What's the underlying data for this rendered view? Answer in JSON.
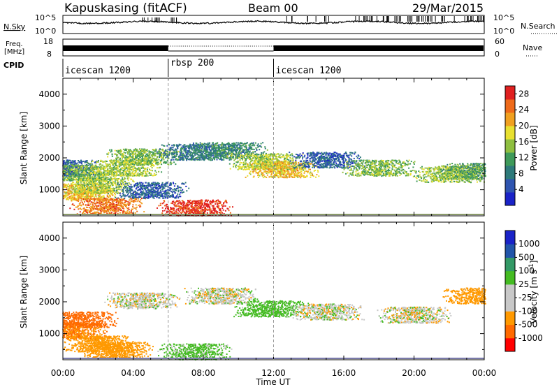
{
  "header": {
    "station": "Kapuskasing (fitACF)",
    "beam": "Beam 00",
    "date": "29/Mar/2015"
  },
  "noise_panel": {
    "left_label": "N.Sky",
    "right_label": "N.Search",
    "top_tick": "10^5",
    "bottom_tick": "10^0"
  },
  "freq_panel": {
    "left_label_1": "Freq.",
    "left_label_2": "[MHz]",
    "right_label": "Nave",
    "left_top_tick": "18",
    "left_bottom_tick": "8",
    "right_top_tick": "60",
    "right_bottom_tick": "0"
  },
  "cpid": {
    "label": "CPID",
    "segments": [
      {
        "name": "icescan 1200",
        "start_hour": 0,
        "end_hour": 6
      },
      {
        "name": "rbsp 200",
        "start_hour": 6,
        "end_hour": 12
      },
      {
        "name": "icescan 1200",
        "start_hour": 12,
        "end_hour": 24
      }
    ]
  },
  "colors": {
    "power": [
      "#1a23c8",
      "#2f55b0",
      "#2e7a7a",
      "#3f9a5a",
      "#8fbf40",
      "#e8e030",
      "#f0a020",
      "#ee6a1a",
      "#e02020"
    ],
    "velocity": [
      "#ff0000",
      "#ff6a00",
      "#ff9900",
      "#c8c8c8",
      "#c8c8c8",
      "#44bb22",
      "#339966",
      "#2255aa",
      "#1a23c8"
    ]
  },
  "chart_data": [
    {
      "type": "heatmap",
      "title": "",
      "xlabel": "",
      "ylabel": "Slant Range [km]",
      "x_ticks": [
        "00:00",
        "04:00",
        "08:00",
        "12:00",
        "16:00",
        "20:00",
        "00:00"
      ],
      "x_range_hours": [
        0,
        24
      ],
      "y_ticks": [
        1000,
        2000,
        3000,
        4000
      ],
      "ylim": [
        180,
        4500
      ],
      "colorbar": {
        "label": "Power [dB]",
        "ticks": [
          4,
          8,
          12,
          16,
          20,
          24,
          28
        ],
        "range": [
          0,
          30
        ]
      },
      "features": [
        {
          "hour": 0.0,
          "range_km": 1700,
          "power_db": 6
        },
        {
          "hour": 1.0,
          "range_km": 1550,
          "power_db": 14
        },
        {
          "hour": 1.0,
          "range_km": 950,
          "power_db": 20
        },
        {
          "hour": 2.0,
          "range_km": 1150,
          "power_db": 16
        },
        {
          "hour": 2.5,
          "range_km": 500,
          "power_db": 24
        },
        {
          "hour": 3.5,
          "range_km": 1700,
          "power_db": 16
        },
        {
          "hour": 4.5,
          "range_km": 2050,
          "power_db": 14
        },
        {
          "hour": 5.0,
          "range_km": 1000,
          "power_db": 6
        },
        {
          "hour": 7.5,
          "range_km": 2200,
          "power_db": 8
        },
        {
          "hour": 7.5,
          "range_km": 450,
          "power_db": 28
        },
        {
          "hour": 9.5,
          "range_km": 2250,
          "power_db": 10
        },
        {
          "hour": 11.5,
          "range_km": 1900,
          "power_db": 16
        },
        {
          "hour": 12.5,
          "range_km": 1650,
          "power_db": 20
        },
        {
          "hour": 15.0,
          "range_km": 1950,
          "power_db": 6
        },
        {
          "hour": 18.0,
          "range_km": 1700,
          "power_db": 14
        },
        {
          "hour": 22.0,
          "range_km": 1500,
          "power_db": 16
        },
        {
          "hour": 23.5,
          "range_km": 1600,
          "power_db": 12
        }
      ]
    },
    {
      "type": "heatmap",
      "title": "",
      "xlabel": "Time UT",
      "ylabel": "Slant Range [km]",
      "x_ticks": [
        "00:00",
        "04:00",
        "08:00",
        "12:00",
        "16:00",
        "20:00",
        "00:00"
      ],
      "x_range_hours": [
        0,
        24
      ],
      "y_ticks": [
        1000,
        2000,
        3000,
        4000
      ],
      "ylim": [
        180,
        4500
      ],
      "colorbar": {
        "label": "Velocity [m s^-1]",
        "ticks": [
          "1000",
          "500",
          "100",
          "25",
          "-25",
          "-100",
          "-500",
          "-1000"
        ]
      },
      "features": [
        {
          "hour": 0.5,
          "range_km": 1100,
          "velocity": -300
        },
        {
          "hour": 1.0,
          "range_km": 1450,
          "velocity": -700
        },
        {
          "hour": 2.0,
          "range_km": 700,
          "velocity": -200
        },
        {
          "hour": 3.0,
          "range_km": 500,
          "velocity": -200
        },
        {
          "hour": 4.5,
          "range_km": 2050,
          "velocity": 0
        },
        {
          "hour": 7.5,
          "range_km": 450,
          "velocity": 120
        },
        {
          "hour": 9.0,
          "range_km": 2200,
          "velocity": 0
        },
        {
          "hour": 11.8,
          "range_km": 1800,
          "velocity": 150
        },
        {
          "hour": 15.0,
          "range_km": 1700,
          "velocity": 0
        },
        {
          "hour": 20.0,
          "range_km": 1600,
          "velocity": 0
        },
        {
          "hour": 23.7,
          "range_km": 2200,
          "velocity": -150
        }
      ]
    }
  ]
}
